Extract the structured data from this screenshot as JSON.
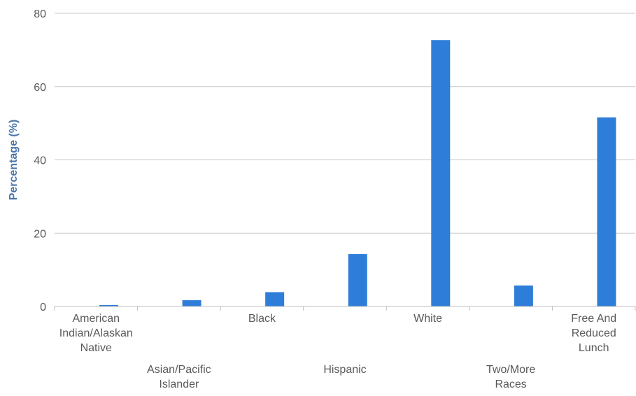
{
  "chart_data": {
    "type": "bar",
    "categories": [
      "American Indian/Alaskan Native",
      "Asian/Pacific Islander",
      "Black",
      "Hispanic",
      "White",
      "Two/More Races",
      "Free And Reduced Lunch"
    ],
    "category_label_lines": [
      [
        "American",
        "Indian/Alaskan",
        "Native"
      ],
      [
        "Asian/Pacific",
        "Islander"
      ],
      [
        "Black"
      ],
      [
        "Hispanic"
      ],
      [
        "White"
      ],
      [
        "Two/More",
        "Races"
      ],
      [
        "Free And",
        "Reduced",
        "Lunch"
      ]
    ],
    "values": [
      0.4,
      1.7,
      3.9,
      14.3,
      72.7,
      5.7,
      51.6
    ],
    "xlabel": "",
    "ylabel": "Percentage (%)",
    "ylim": [
      0,
      80
    ],
    "yticks": [
      0,
      20,
      40,
      60,
      80
    ],
    "ytick_labels": [
      "0",
      "20",
      "40",
      "60",
      "80"
    ],
    "grid": true,
    "legend": "none",
    "colors": {
      "bar": "#2e7dd9",
      "ylabel": "#4a76a8",
      "grid": "#c8c8c8",
      "axis": "#bfbfbf",
      "text": "#595959"
    }
  }
}
